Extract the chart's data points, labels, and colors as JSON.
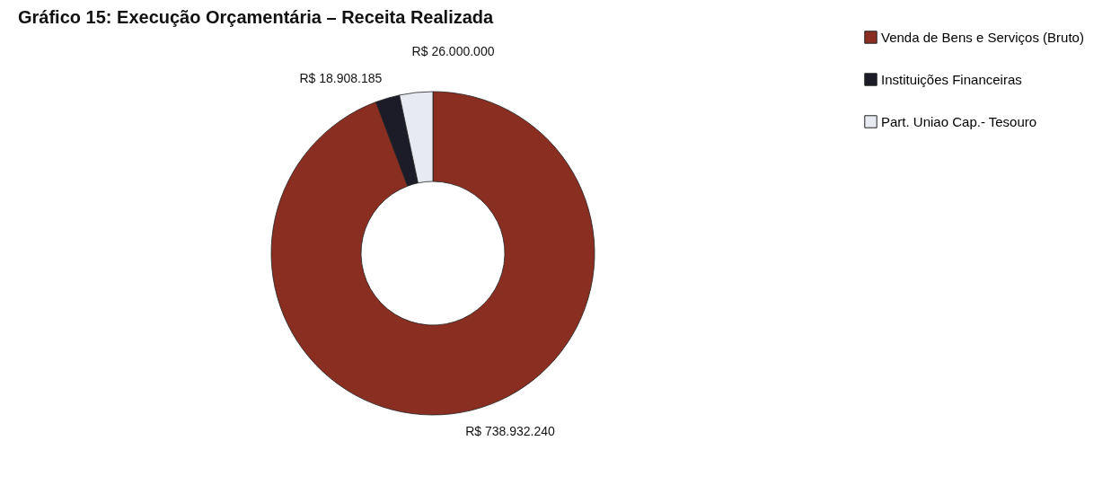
{
  "chart_data": {
    "type": "donut",
    "title": "Gráfico 15: Execução Orçamentária – Receita Realizada",
    "categories": [
      "Venda de Bens e Serviços (Bruto)",
      "Instituições Financeiras",
      "Part. Uniao Cap.- Tesouro"
    ],
    "values": [
      738932240,
      18908185,
      26000000
    ],
    "colors": [
      "#8b2e22",
      "#1c1c28",
      "#e8eaf2"
    ],
    "value_labels": [
      "R$ 738.932.240",
      "R$ 18.908.185",
      "R$ 26.000.000"
    ],
    "legend": "right"
  }
}
